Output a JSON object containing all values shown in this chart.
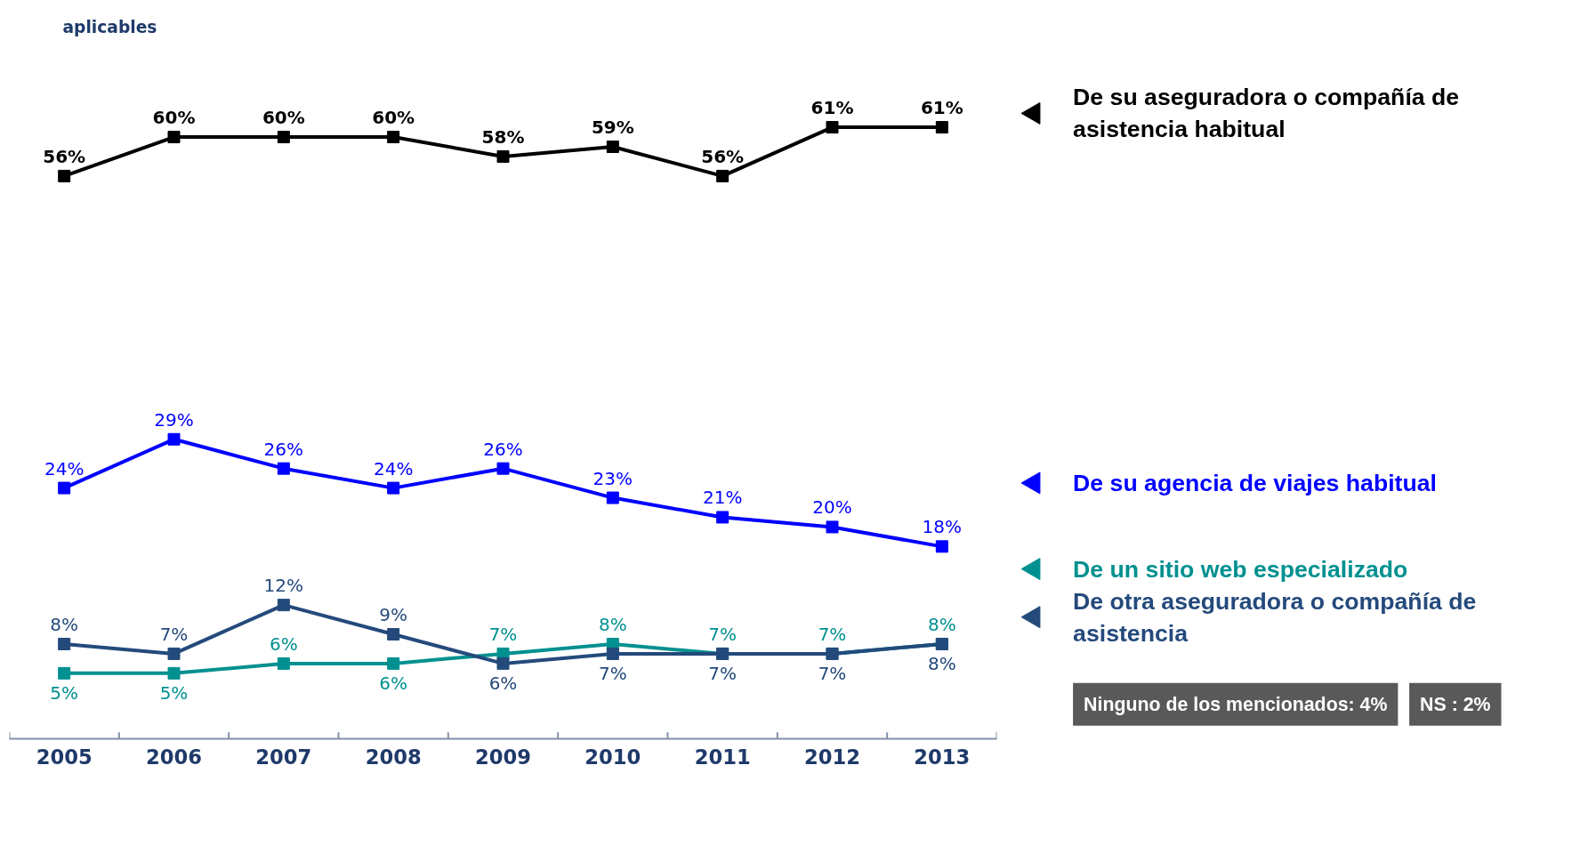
{
  "chart_data": {
    "type": "line",
    "categories": [
      "2005",
      "2006",
      "2007",
      "2008",
      "2009",
      "2010",
      "2011",
      "2012",
      "2013"
    ],
    "series": [
      {
        "name": "De su aseguradora o compañía de asistencia habitual",
        "color": "#000000",
        "values": [
          56,
          60,
          60,
          60,
          58,
          59,
          56,
          61,
          61
        ],
        "value_labels": [
          "56%",
          "60%",
          "60%",
          "60%",
          "58%",
          "59%",
          "56%",
          "61%",
          "61%"
        ]
      },
      {
        "name": "De su agencia de viajes habitual",
        "color": "#0000ff",
        "values": [
          24,
          29,
          26,
          24,
          26,
          23,
          21,
          20,
          18
        ],
        "value_labels": [
          "24%",
          "29%",
          "26%",
          "24%",
          "26%",
          "23%",
          "21%",
          "20%",
          "18%"
        ]
      },
      {
        "name": "De un sitio web especializado",
        "color": "#009090",
        "values": [
          5,
          5,
          6,
          6,
          7,
          8,
          7,
          7,
          8
        ],
        "value_labels": [
          "5%",
          "5%",
          "6%",
          "6%",
          "7%",
          "8%",
          "7%",
          "7%",
          "8%"
        ]
      },
      {
        "name": "De otra aseguradora o compañía de asistencia",
        "color": "#244a7c",
        "values": [
          8,
          7,
          12,
          9,
          6,
          7,
          7,
          7,
          8
        ],
        "value_labels": [
          "8%",
          "7%",
          "12%",
          "9%",
          "6%",
          "7%",
          "7%",
          "7%",
          "8%"
        ]
      }
    ],
    "legend": "right",
    "marker": "square",
    "line_style": "solid",
    "grid": false,
    "tick_labels": "x",
    "annotations": [
      "aplicables",
      "Ninguno de los mencionados: 4%",
      "NS : 2%"
    ]
  }
}
